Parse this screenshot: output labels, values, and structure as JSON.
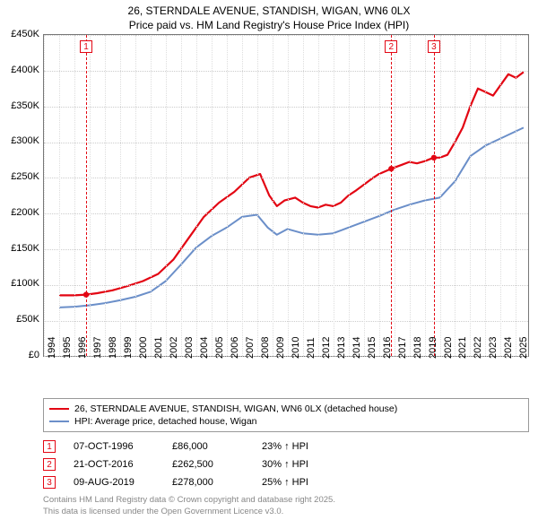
{
  "title": {
    "line1": "26, STERNDALE AVENUE, STANDISH, WIGAN, WN6 0LX",
    "line2": "Price paid vs. HM Land Registry's House Price Index (HPI)",
    "fontsize": 12,
    "color": "#000000"
  },
  "chart": {
    "type": "line",
    "background_color": "#ffffff",
    "border_color": "#777777",
    "grid_color_h": "#cccccc",
    "grid_color_v": "#dddddd",
    "x": {
      "min": 1994,
      "max": 2025.8,
      "ticks": [
        1994,
        1995,
        1996,
        1997,
        1998,
        1999,
        2000,
        2001,
        2002,
        2003,
        2004,
        2005,
        2006,
        2007,
        2008,
        2009,
        2010,
        2011,
        2012,
        2013,
        2014,
        2015,
        2016,
        2017,
        2018,
        2019,
        2020,
        2021,
        2022,
        2023,
        2024,
        2025
      ],
      "label_fontsize": 11,
      "label_rotation": -90
    },
    "y": {
      "min": 0,
      "max": 450000,
      "ticks": [
        0,
        50000,
        100000,
        150000,
        200000,
        250000,
        300000,
        350000,
        400000,
        450000
      ],
      "tick_labels": [
        "£0",
        "£50K",
        "£100K",
        "£150K",
        "£200K",
        "£250K",
        "£300K",
        "£350K",
        "£400K",
        "£450K"
      ],
      "label_fontsize": 11
    },
    "series": [
      {
        "name": "26, STERNDALE AVENUE, STANDISH, WIGAN, WN6 0LX (detached house)",
        "color": "#e30613",
        "line_width": 2.2,
        "data": [
          [
            1995.0,
            85000
          ],
          [
            1996.0,
            85000
          ],
          [
            1996.77,
            86000
          ],
          [
            1997.5,
            88000
          ],
          [
            1998.5,
            92000
          ],
          [
            1999.5,
            98000
          ],
          [
            2000.5,
            105000
          ],
          [
            2001.5,
            115000
          ],
          [
            2002.5,
            135000
          ],
          [
            2003.5,
            165000
          ],
          [
            2004.5,
            195000
          ],
          [
            2005.5,
            215000
          ],
          [
            2006.5,
            230000
          ],
          [
            2007.5,
            250000
          ],
          [
            2008.2,
            255000
          ],
          [
            2008.8,
            225000
          ],
          [
            2009.3,
            210000
          ],
          [
            2009.8,
            218000
          ],
          [
            2010.5,
            222000
          ],
          [
            2011.0,
            215000
          ],
          [
            2011.5,
            210000
          ],
          [
            2012.0,
            208000
          ],
          [
            2012.5,
            212000
          ],
          [
            2013.0,
            210000
          ],
          [
            2013.5,
            215000
          ],
          [
            2014.0,
            225000
          ],
          [
            2014.5,
            232000
          ],
          [
            2015.0,
            240000
          ],
          [
            2015.5,
            248000
          ],
          [
            2016.0,
            255000
          ],
          [
            2016.8,
            262500
          ],
          [
            2017.5,
            268000
          ],
          [
            2018.0,
            272000
          ],
          [
            2018.5,
            270000
          ],
          [
            2019.0,
            273000
          ],
          [
            2019.6,
            278000
          ],
          [
            2020.0,
            278000
          ],
          [
            2020.5,
            282000
          ],
          [
            2021.0,
            300000
          ],
          [
            2021.5,
            320000
          ],
          [
            2022.0,
            350000
          ],
          [
            2022.5,
            375000
          ],
          [
            2023.0,
            370000
          ],
          [
            2023.5,
            365000
          ],
          [
            2024.0,
            380000
          ],
          [
            2024.5,
            395000
          ],
          [
            2025.0,
            390000
          ],
          [
            2025.5,
            398000
          ]
        ]
      },
      {
        "name": "HPI: Average price, detached house, Wigan",
        "color": "#6b8fc9",
        "line_width": 2.0,
        "data": [
          [
            1995.0,
            68000
          ],
          [
            1996.0,
            69000
          ],
          [
            1997.0,
            71000
          ],
          [
            1998.0,
            74000
          ],
          [
            1999.0,
            78000
          ],
          [
            2000.0,
            83000
          ],
          [
            2001.0,
            90000
          ],
          [
            2002.0,
            105000
          ],
          [
            2003.0,
            128000
          ],
          [
            2004.0,
            152000
          ],
          [
            2005.0,
            168000
          ],
          [
            2006.0,
            180000
          ],
          [
            2007.0,
            195000
          ],
          [
            2008.0,
            198000
          ],
          [
            2008.7,
            180000
          ],
          [
            2009.3,
            170000
          ],
          [
            2010.0,
            178000
          ],
          [
            2011.0,
            172000
          ],
          [
            2012.0,
            170000
          ],
          [
            2013.0,
            172000
          ],
          [
            2014.0,
            180000
          ],
          [
            2015.0,
            188000
          ],
          [
            2016.0,
            196000
          ],
          [
            2017.0,
            205000
          ],
          [
            2018.0,
            212000
          ],
          [
            2019.0,
            218000
          ],
          [
            2020.0,
            222000
          ],
          [
            2021.0,
            245000
          ],
          [
            2022.0,
            280000
          ],
          [
            2023.0,
            295000
          ],
          [
            2024.0,
            305000
          ],
          [
            2025.0,
            315000
          ],
          [
            2025.5,
            320000
          ]
        ]
      }
    ],
    "markers": [
      {
        "num": "1",
        "x": 1996.77,
        "y": 86000,
        "color": "#e30613"
      },
      {
        "num": "2",
        "x": 2016.81,
        "y": 262500,
        "color": "#e30613"
      },
      {
        "num": "3",
        "x": 2019.61,
        "y": 278000,
        "color": "#e30613"
      }
    ]
  },
  "legend": {
    "items": [
      {
        "color": "#e30613",
        "label": "26, STERNDALE AVENUE, STANDISH, WIGAN, WN6 0LX (detached house)"
      },
      {
        "color": "#6b8fc9",
        "label": "HPI: Average price, detached house, Wigan"
      }
    ]
  },
  "transactions": {
    "rows": [
      {
        "num": "1",
        "color": "#e30613",
        "date": "07-OCT-1996",
        "price": "£86,000",
        "delta": "23% ↑ HPI"
      },
      {
        "num": "2",
        "color": "#e30613",
        "date": "21-OCT-2016",
        "price": "£262,500",
        "delta": "30% ↑ HPI"
      },
      {
        "num": "3",
        "color": "#e30613",
        "date": "09-AUG-2019",
        "price": "£278,000",
        "delta": "25% ↑ HPI"
      }
    ]
  },
  "footer": {
    "line1": "Contains HM Land Registry data © Crown copyright and database right 2025.",
    "line2": "This data is licensed under the Open Government Licence v3.0.",
    "color": "#888888"
  }
}
